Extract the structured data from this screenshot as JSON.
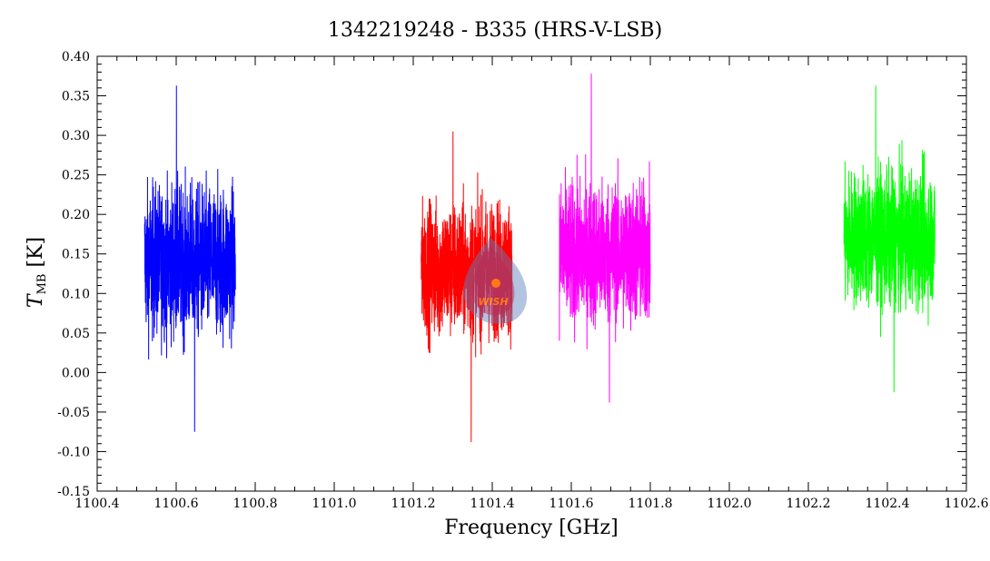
{
  "chart_data": {
    "type": "line",
    "title": "1342219248 - B335 (HRS-V-LSB)",
    "xlabel": "Frequency [GHz]",
    "ylabel": "T",
    "ylabel_sub": "MB",
    "ylabel_unit": " [K]",
    "xlim": [
      1100.4,
      1102.6
    ],
    "ylim": [
      -0.15,
      0.4
    ],
    "x_ticks": [
      1100.4,
      1100.6,
      1100.8,
      1101.0,
      1101.2,
      1101.4,
      1101.6,
      1101.8,
      1102.0,
      1102.2,
      1102.4,
      1102.6
    ],
    "y_ticks": [
      -0.15,
      -0.1,
      -0.05,
      0.0,
      0.05,
      0.1,
      0.15,
      0.2,
      0.25,
      0.3,
      0.35,
      0.4
    ],
    "grid": false,
    "logo_text": "WISH",
    "series": [
      {
        "color": "#0000ff",
        "x_range": [
          1100.52,
          1100.75
        ],
        "mean": 0.14,
        "min": -0.075,
        "max": 0.363
      },
      {
        "color": "#ff0000",
        "x_range": [
          1101.22,
          1101.45
        ],
        "mean": 0.13,
        "min": -0.088,
        "max": 0.305
      },
      {
        "color": "#ff00ff",
        "x_range": [
          1101.57,
          1101.8
        ],
        "mean": 0.15,
        "min": -0.038,
        "max": 0.378
      },
      {
        "color": "#00ff00",
        "x_range": [
          1102.29,
          1102.52
        ],
        "mean": 0.17,
        "min": -0.025,
        "max": 0.363
      }
    ]
  }
}
